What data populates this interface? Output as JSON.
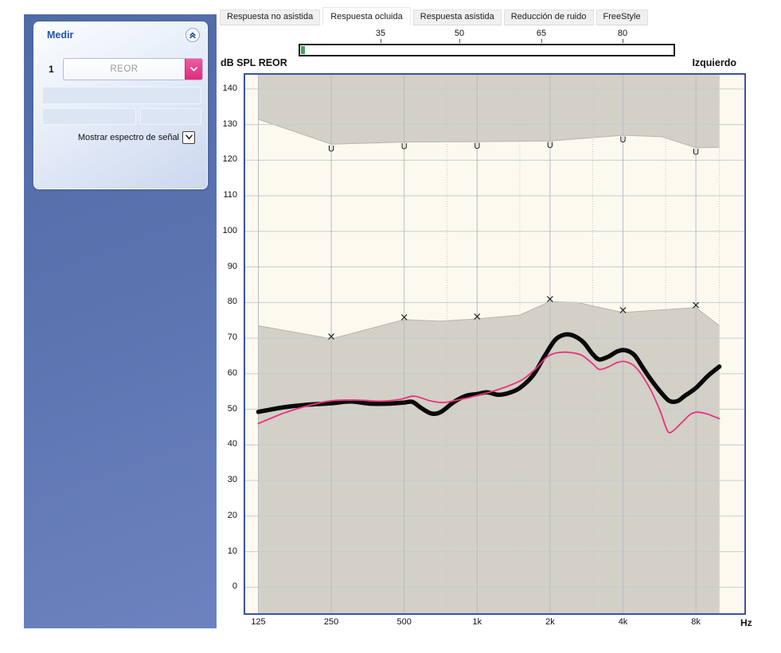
{
  "colors": {
    "accent_pink": "#e8337f",
    "sidebar_blue": "#5a74b0",
    "panel_title_blue": "#1d53b4",
    "chart_border_blue": "#3952a4",
    "chart_background_cream": "#fcf9ef",
    "shaded_region_gray": "#d3d0c7",
    "progress_green": "#44a25a",
    "curve_black": "#0a0a0a"
  },
  "sidebar": {
    "panel": {
      "title": "Medir",
      "row_number": "1",
      "combo_value": "REOR",
      "spectrum_label": "Mostrar espectro de señal"
    }
  },
  "tabs": [
    {
      "label": "Respuesta no asistida",
      "active": false
    },
    {
      "label": "Respuesta ocluida",
      "active": true
    },
    {
      "label": "Respuesta asistida",
      "active": false
    },
    {
      "label": "Reducción de ruido",
      "active": false
    },
    {
      "label": "FreeStyle",
      "active": false
    }
  ],
  "level_ruler": {
    "ticks": [
      "35",
      "50",
      "65",
      "80"
    ],
    "fill_percent": 1
  },
  "chart": {
    "title": "dB SPL REOR",
    "side_label": "Izquierdo",
    "x_unit_label": "Hz"
  },
  "chart_data": {
    "type": "line",
    "x_scale": "log",
    "xlabel": "Hz",
    "ylabel": "dB SPL REOR",
    "xlim": [
      125,
      12900
    ],
    "ylim": [
      0,
      140
    ],
    "x_ticks": [
      125,
      250,
      500,
      1000,
      2000,
      4000,
      8000
    ],
    "x_tick_labels": [
      "125",
      "250",
      "500",
      "1k",
      "2k",
      "4k",
      "8k"
    ],
    "y_ticks": [
      0,
      10,
      20,
      30,
      40,
      50,
      60,
      70,
      80,
      90,
      100,
      110,
      120,
      130,
      140
    ],
    "minor_x_gridlines": [
      750,
      1500,
      3000,
      6000,
      10000
    ],
    "region_fill": "#d3d0c7",
    "upper_shaded_region": {
      "marker_symbol": "U",
      "marker_freqs": [
        250,
        500,
        1000,
        2000,
        4000,
        8000
      ],
      "marker_values_db": [
        124.5,
        125.1,
        125.2,
        125.4,
        127,
        123.5
      ],
      "boundary_points": [
        [
          125,
          131.5
        ],
        [
          250,
          124.5
        ],
        [
          500,
          125.1
        ],
        [
          1000,
          125.2
        ],
        [
          2000,
          125.4
        ],
        [
          4000,
          127
        ],
        [
          5800,
          126.6
        ],
        [
          8000,
          123.5
        ],
        [
          10000,
          123.6
        ]
      ]
    },
    "lower_shaded_region": {
      "marker_symbol": "x",
      "marker_freqs": [
        250,
        500,
        1000,
        2000,
        4000,
        8000
      ],
      "marker_values_db": [
        69.8,
        75.2,
        75.4,
        80.3,
        77.2,
        78.6
      ],
      "boundary_points": [
        [
          125,
          73.5
        ],
        [
          250,
          69.8
        ],
        [
          500,
          75.2
        ],
        [
          700,
          74.8
        ],
        [
          1000,
          75.4
        ],
        [
          1500,
          76.5
        ],
        [
          2000,
          80.3
        ],
        [
          2600,
          80
        ],
        [
          4000,
          77.2
        ],
        [
          6000,
          78
        ],
        [
          8000,
          78.6
        ],
        [
          10000,
          73.5
        ]
      ]
    },
    "series": [
      {
        "id": "reor_measured_black",
        "style": "thick",
        "color": "#0a0a0a",
        "stroke_width": 5.5,
        "points_f_db": [
          [
            125,
            49.3
          ],
          [
            160,
            50.6
          ],
          [
            200,
            51.3
          ],
          [
            250,
            51.7
          ],
          [
            300,
            52.2
          ],
          [
            360,
            51.6
          ],
          [
            430,
            51.6
          ],
          [
            500,
            51.9
          ],
          [
            540,
            52.1
          ],
          [
            590,
            50.3
          ],
          [
            650,
            48.8
          ],
          [
            710,
            49.3
          ],
          [
            800,
            52
          ],
          [
            900,
            53.8
          ],
          [
            1000,
            54.3
          ],
          [
            1100,
            54.8
          ],
          [
            1220,
            54.1
          ],
          [
            1350,
            54.6
          ],
          [
            1500,
            56
          ],
          [
            1700,
            59.5
          ],
          [
            1900,
            65
          ],
          [
            2100,
            69.5
          ],
          [
            2300,
            71
          ],
          [
            2500,
            70.7
          ],
          [
            2750,
            68.8
          ],
          [
            3000,
            65.5
          ],
          [
            3200,
            64
          ],
          [
            3500,
            64.9
          ],
          [
            3800,
            66.3
          ],
          [
            4100,
            66.6
          ],
          [
            4450,
            65.3
          ],
          [
            4800,
            62
          ],
          [
            5200,
            58.5
          ],
          [
            5700,
            55
          ],
          [
            6200,
            52.4
          ],
          [
            6700,
            52.3
          ],
          [
            7200,
            53.8
          ],
          [
            8000,
            56
          ],
          [
            9000,
            59.5
          ],
          [
            10000,
            62
          ]
        ]
      },
      {
        "id": "reor_target_pink",
        "style": "thin",
        "color": "#e8337f",
        "stroke_width": 1.8,
        "points_f_db": [
          [
            125,
            46
          ],
          [
            160,
            49
          ],
          [
            200,
            51
          ],
          [
            250,
            52.4
          ],
          [
            320,
            52.6
          ],
          [
            400,
            52.3
          ],
          [
            480,
            52.8
          ],
          [
            550,
            53.7
          ],
          [
            640,
            52.4
          ],
          [
            720,
            51.9
          ],
          [
            800,
            52.4
          ],
          [
            900,
            53.1
          ],
          [
            1000,
            53.9
          ],
          [
            1150,
            55
          ],
          [
            1350,
            56.6
          ],
          [
            1550,
            58.5
          ],
          [
            1750,
            61.5
          ],
          [
            1950,
            64.8
          ],
          [
            2150,
            65.9
          ],
          [
            2400,
            66
          ],
          [
            2700,
            65.2
          ],
          [
            3000,
            62.8
          ],
          [
            3200,
            61.2
          ],
          [
            3500,
            62
          ],
          [
            3800,
            63.2
          ],
          [
            4100,
            63.4
          ],
          [
            4450,
            62.2
          ],
          [
            4800,
            59.5
          ],
          [
            5200,
            55.5
          ],
          [
            5700,
            49.5
          ],
          [
            6100,
            44
          ],
          [
            6400,
            43.8
          ],
          [
            7000,
            46.3
          ],
          [
            7600,
            48.6
          ],
          [
            8100,
            49.2
          ],
          [
            8800,
            48.8
          ],
          [
            9400,
            48.1
          ],
          [
            10000,
            47.4
          ]
        ]
      }
    ]
  }
}
